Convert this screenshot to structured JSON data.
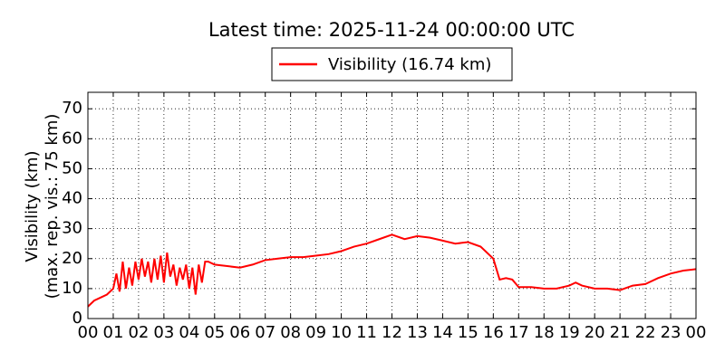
{
  "chart_data": {
    "type": "line",
    "title": "Latest time: 2025-11-24 00:00:00 UTC",
    "y_label": [
      "Visibility (km)",
      "(max. rep. vis.: 75 km)"
    ],
    "x": [
      0,
      0.25,
      0.5,
      0.75,
      1,
      1.125,
      1.25,
      1.375,
      1.5,
      1.625,
      1.75,
      1.875,
      2,
      2.125,
      2.25,
      2.375,
      2.5,
      2.625,
      2.75,
      2.875,
      3,
      3.125,
      3.25,
      3.375,
      3.5,
      3.625,
      3.75,
      3.875,
      4,
      4.125,
      4.25,
      4.375,
      4.5,
      4.625,
      4.75,
      5,
      5.5,
      6,
      6.5,
      7,
      7.5,
      8,
      8.5,
      9,
      9.5,
      10,
      10.5,
      11,
      11.5,
      12,
      12.5,
      13,
      13.5,
      14,
      14.5,
      15,
      15.5,
      16,
      16.25,
      16.5,
      16.75,
      17,
      17.5,
      18,
      18.5,
      19,
      19.25,
      19.5,
      20,
      20.5,
      21,
      21.5,
      22,
      22.5,
      23,
      23.5,
      24
    ],
    "series": [
      {
        "name": "Visibility (16.74 km)",
        "color": "#ff0000",
        "values": [
          4,
          6,
          7,
          8,
          10,
          15,
          9,
          19,
          10,
          17,
          11,
          19,
          13,
          20,
          14,
          19,
          12,
          20,
          13,
          21,
          12,
          22,
          14,
          18,
          11,
          17,
          13,
          18,
          10,
          17,
          8,
          18,
          12,
          19,
          19,
          18,
          17.5,
          17,
          18,
          19.5,
          20,
          20.5,
          20.5,
          21,
          21.5,
          22.5,
          24,
          25,
          26.5,
          28,
          26.5,
          27.5,
          27,
          26,
          25,
          25.5,
          24,
          20,
          13,
          13.5,
          13,
          10.5,
          10.5,
          10,
          10,
          11,
          12,
          11,
          10,
          10,
          9.5,
          11,
          11.5,
          13.5,
          15,
          16,
          16.5
        ]
      }
    ],
    "xlim": [
      0,
      24
    ],
    "ylim": [
      0,
      75.5
    ],
    "xticks": [
      {
        "value": 0,
        "label": "00"
      },
      {
        "value": 1,
        "label": "01"
      },
      {
        "value": 2,
        "label": "02"
      },
      {
        "value": 3,
        "label": "03"
      },
      {
        "value": 4,
        "label": "04"
      },
      {
        "value": 5,
        "label": "05"
      },
      {
        "value": 6,
        "label": "06"
      },
      {
        "value": 7,
        "label": "07"
      },
      {
        "value": 8,
        "label": "08"
      },
      {
        "value": 9,
        "label": "09"
      },
      {
        "value": 10,
        "label": "10"
      },
      {
        "value": 11,
        "label": "11"
      },
      {
        "value": 12,
        "label": "12"
      },
      {
        "value": 13,
        "label": "13"
      },
      {
        "value": 14,
        "label": "14"
      },
      {
        "value": 15,
        "label": "15"
      },
      {
        "value": 16,
        "label": "16"
      },
      {
        "value": 17,
        "label": "17"
      },
      {
        "value": 18,
        "label": "18"
      },
      {
        "value": 19,
        "label": "19"
      },
      {
        "value": 20,
        "label": "20"
      },
      {
        "value": 21,
        "label": "21"
      },
      {
        "value": 22,
        "label": "22"
      },
      {
        "value": 23,
        "label": "23"
      },
      {
        "value": 24,
        "label": "00"
      }
    ],
    "yticks": [
      0,
      10,
      20,
      30,
      40,
      50,
      60,
      70
    ],
    "grid": true
  }
}
